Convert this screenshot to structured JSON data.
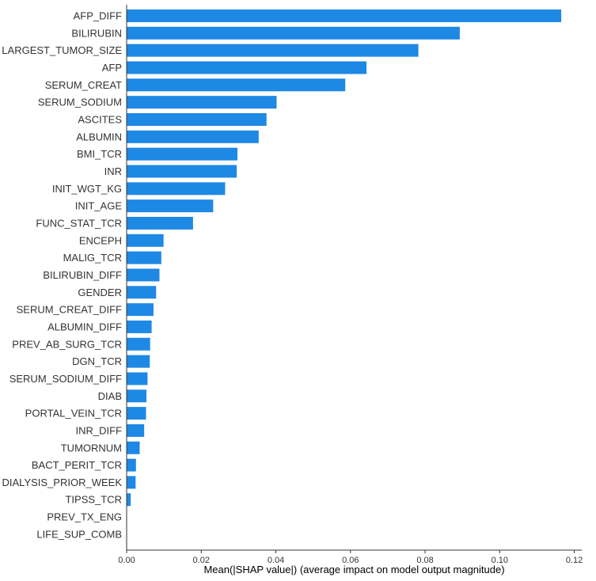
{
  "chart_data": {
    "type": "bar",
    "orientation": "horizontal",
    "xlabel": "Mean(|SHAP value|) (average impact on model output magnitude)",
    "xlim": [
      0,
      0.122
    ],
    "xticks": [
      "0.00",
      "0.02",
      "0.04",
      "0.06",
      "0.08",
      "0.10",
      "0.12"
    ],
    "bar_color": "#1e88e5",
    "grid": false,
    "categories": [
      "AFP_DIFF",
      "BILIRUBIN",
      "LARGEST_TUMOR_SIZE",
      "AFP",
      "SERUM_CREAT",
      "SERUM_SODIUM",
      "ASCITES",
      "ALBUMIN",
      "BMI_TCR",
      "INR",
      "INIT_WGT_KG",
      "INIT_AGE",
      "FUNC_STAT_TCR",
      "ENCEPH",
      "MALIG_TCR",
      "BILIRUBIN_DIFF",
      "GENDER",
      "SERUM_CREAT_DIFF",
      "ALBUMIN_DIFF",
      "PREV_AB_SURG_TCR",
      "DGN_TCR",
      "SERUM_SODIUM_DIFF",
      "DIAB",
      "PORTAL_VEIN_TCR",
      "INR_DIFF",
      "TUMORNUM",
      "BACT_PERIT_TCR",
      "DIALYSIS_PRIOR_WEEK",
      "TIPSS_TCR",
      "PREV_TX_ENG",
      "LIFE_SUP_COMB"
    ],
    "values": [
      0.1165,
      0.0893,
      0.0782,
      0.0643,
      0.0586,
      0.0402,
      0.0375,
      0.0354,
      0.0297,
      0.0295,
      0.0264,
      0.0232,
      0.0178,
      0.0099,
      0.0093,
      0.0088,
      0.0079,
      0.0072,
      0.0067,
      0.0063,
      0.0062,
      0.0056,
      0.0053,
      0.0052,
      0.0047,
      0.0035,
      0.0025,
      0.0024,
      0.0011,
      0.0001,
      0.0001
    ]
  }
}
